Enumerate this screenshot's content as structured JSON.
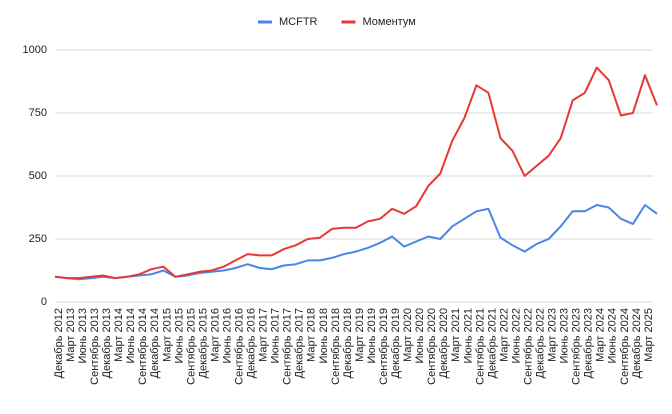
{
  "chart_data": {
    "type": "line",
    "categories": [
      "Декабрь 2012",
      "Март 2013",
      "Июнь 2013",
      "Сентябрь 2013",
      "Декабрь 2013",
      "Март 2014",
      "Июнь 2014",
      "Сентябрь 2014",
      "Декабрь 2014",
      "Март 2015",
      "Июнь 2015",
      "Сентябрь 2015",
      "Декабрь 2015",
      "Март 2016",
      "Июнь 2016",
      "Сентябрь 2016",
      "Декабрь 2016",
      "Март 2017",
      "Июнь 2017",
      "Сентябрь 2017",
      "Декабрь 2017",
      "Март 2018",
      "Июнь 2018",
      "Сентябрь 2018",
      "Декабрь 2018",
      "Март 2019",
      "Июнь 2019",
      "Сентябрь 2019",
      "Декабрь 2019",
      "Март 2020",
      "Июнь 2020",
      "Сентябрь 2020",
      "Декабрь 2020",
      "Март 2021",
      "Июнь 2021",
      "Сентябрь 2021",
      "Декабрь 2021",
      "Март 2022",
      "Июнь 2022",
      "Сентябрь 2022",
      "Декабрь 2022",
      "Март 2023",
      "Июнь 2023",
      "Сентябрь 2023",
      "Декабрь 2023",
      "Март 2024",
      "Июнь 2024",
      "Сентябрь 2024",
      "Декабрь 2024",
      "Март 2025",
      null
    ],
    "series": [
      {
        "name": "MCFTR",
        "color": "#4a86e8",
        "values": [
          100,
          95,
          90,
          95,
          100,
          95,
          100,
          105,
          110,
          125,
          100,
          105,
          115,
          120,
          125,
          135,
          150,
          135,
          130,
          145,
          150,
          165,
          165,
          175,
          190,
          200,
          215,
          235,
          260,
          220,
          240,
          260,
          250,
          300,
          330,
          360,
          370,
          255,
          225,
          200,
          230,
          250,
          300,
          360,
          360,
          385,
          375,
          330,
          310,
          385,
          350
        ]
      },
      {
        "name": "Моментум",
        "color": "#e53935",
        "values": [
          100,
          95,
          95,
          100,
          105,
          95,
          100,
          110,
          130,
          140,
          100,
          110,
          120,
          125,
          140,
          165,
          190,
          185,
          185,
          210,
          225,
          250,
          255,
          290,
          295,
          295,
          320,
          330,
          370,
          350,
          380,
          460,
          510,
          640,
          730,
          860,
          830,
          650,
          600,
          500,
          540,
          580,
          650,
          800,
          830,
          930,
          880,
          740,
          750,
          900,
          780
        ]
      }
    ],
    "ylim": [
      0,
      1000
    ],
    "yticks": [
      0,
      250,
      500,
      750,
      1000
    ],
    "grid": true,
    "legend": "top"
  }
}
